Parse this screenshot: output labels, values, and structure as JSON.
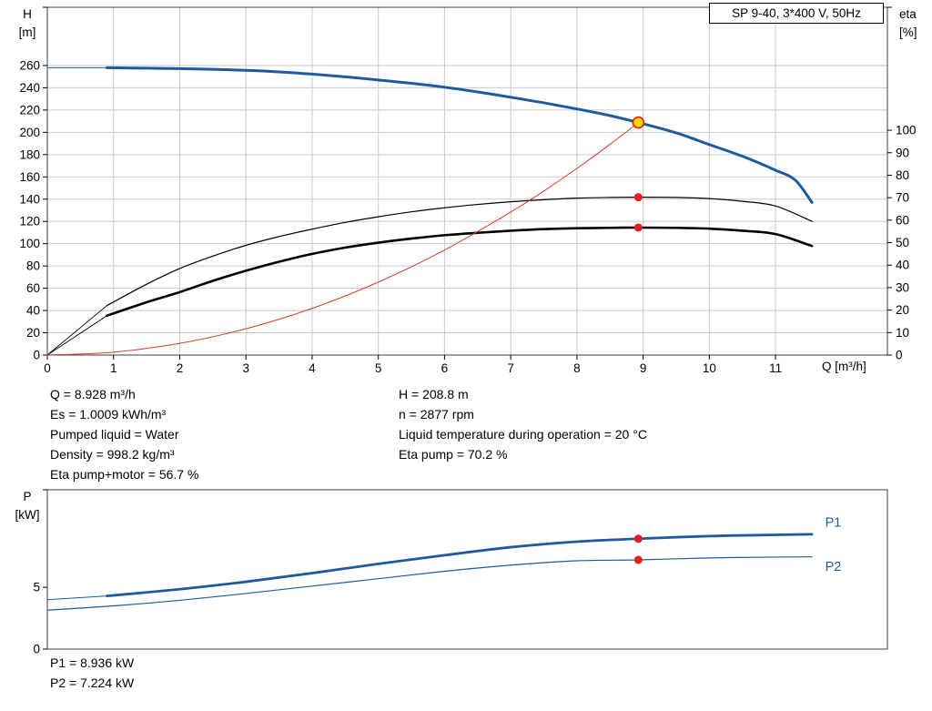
{
  "header": {
    "model": "SP 9-40, 3*400 V, 50Hz"
  },
  "info": {
    "left_lines": [
      "Q = 8.928 m³/h",
      "Es = 1.0009 kWh/m³",
      "Pumped liquid = Water",
      "Density = 998.2 kg/m³",
      "Eta pump+motor = 56.7 %"
    ],
    "right_lines": [
      "H = 208.8 m",
      "n = 2877 rpm",
      "Liquid temperature during operation = 20 °C",
      "Eta pump = 70.2 %"
    ]
  },
  "power_text": [
    "P1 = 8.936 kW",
    "P2 = 7.224 kW"
  ],
  "colors": {
    "curve_blue": "#1e5b9e",
    "curve_black": "#000000",
    "curve_red": "#d93a2b",
    "marker_red": "#e01f1f",
    "marker_yellow": "#ffd400",
    "grid": "#c9c9c9",
    "frame": "#3f3f3f"
  },
  "chart_data": [
    {
      "id": "hq",
      "type": "line",
      "title": "SP 9-40, 3*400 V, 50Hz",
      "x_axis": {
        "label": "Q [m³/h]",
        "min": 0,
        "max": 12.69,
        "gridlines": true,
        "ticks": [
          0,
          1,
          2,
          3,
          4,
          5,
          6,
          7,
          8,
          9,
          10,
          11
        ]
      },
      "y_left": {
        "label": [
          "H",
          "[m]"
        ],
        "min": 0,
        "max": 312.3,
        "gridlines": true,
        "ticks": [
          0,
          20,
          40,
          60,
          80,
          100,
          120,
          140,
          160,
          180,
          200,
          220,
          240,
          260
        ]
      },
      "y_right": {
        "label": [
          "eta",
          "[%]"
        ],
        "min": 0,
        "max": 154.7,
        "ticks": [
          0,
          10,
          20,
          30,
          40,
          50,
          60,
          70,
          80,
          90,
          100
        ]
      },
      "series": [
        {
          "name": "eta-pump-lead",
          "axis": "right",
          "color": "#000000",
          "width": 0.9,
          "points": [
            [
              0,
              0
            ],
            [
              0.9,
              22
            ]
          ]
        },
        {
          "name": "eta-pump-curve",
          "axis": "right",
          "color": "#000000",
          "width": 1.2,
          "points": [
            [
              0.9,
              22
            ],
            [
              1.5,
              31.5
            ],
            [
              2,
              38.5
            ],
            [
              2.5,
              44
            ],
            [
              3,
              48.8
            ],
            [
              3.5,
              52.7
            ],
            [
              4,
              56
            ],
            [
              4.5,
              59
            ],
            [
              5,
              61.5
            ],
            [
              5.5,
              63.7
            ],
            [
              6,
              65.5
            ],
            [
              6.5,
              67
            ],
            [
              7,
              68.2
            ],
            [
              7.5,
              69.1
            ],
            [
              8,
              69.8
            ],
            [
              8.5,
              70.1
            ],
            [
              8.928,
              70.2
            ],
            [
              9.5,
              70.1
            ],
            [
              10,
              69.6
            ],
            [
              10.5,
              68.4
            ],
            [
              11,
              66.3
            ],
            [
              11.55,
              59.5
            ]
          ]
        },
        {
          "name": "eta-pump-motor-lead",
          "axis": "right",
          "color": "#000000",
          "width": 0.9,
          "points": [
            [
              0,
              0
            ],
            [
              0.9,
              17.5
            ]
          ]
        },
        {
          "name": "eta-pump-motor-curve",
          "axis": "right",
          "color": "#000000",
          "width": 2.6,
          "points": [
            [
              0.9,
              17.5
            ],
            [
              1.5,
              23.5
            ],
            [
              2,
              28
            ],
            [
              2.5,
              33
            ],
            [
              3,
              37.5
            ],
            [
              3.5,
              41.5
            ],
            [
              4,
              45
            ],
            [
              4.5,
              47.8
            ],
            [
              5,
              50
            ],
            [
              5.5,
              51.8
            ],
            [
              6,
              53.3
            ],
            [
              6.5,
              54.4
            ],
            [
              7,
              55.3
            ],
            [
              7.5,
              56
            ],
            [
              8,
              56.4
            ],
            [
              8.5,
              56.6
            ],
            [
              8.928,
              56.7
            ],
            [
              9.5,
              56.6
            ],
            [
              10,
              56.2
            ],
            [
              10.5,
              55.3
            ],
            [
              11,
              53.8
            ],
            [
              11.55,
              48.5
            ]
          ]
        },
        {
          "name": "system-curve",
          "axis": "left",
          "color": "#d93a2b",
          "width": 1,
          "points": [
            [
              0,
              0
            ],
            [
              1,
              2.6
            ],
            [
              2,
              10.5
            ],
            [
              3,
              23.6
            ],
            [
              4,
              41.9
            ],
            [
              5,
              65.5
            ],
            [
              6,
              94.3
            ],
            [
              7,
              128.4
            ],
            [
              7.5,
              147.3
            ],
            [
              8,
              167.6
            ],
            [
              8.5,
              189.2
            ],
            [
              8.928,
              208.8
            ]
          ]
        },
        {
          "name": "pump-curve-lead",
          "axis": "left",
          "color": "#1e5b9e",
          "width": 1,
          "points": [
            [
              0,
              258
            ],
            [
              0.9,
              258
            ]
          ]
        },
        {
          "name": "pump-curve",
          "axis": "left",
          "color": "#1e5b9e",
          "width": 3,
          "points": [
            [
              0.9,
              258
            ],
            [
              1.5,
              257.6
            ],
            [
              2,
              257.2
            ],
            [
              2.5,
              256.6
            ],
            [
              3,
              255.7
            ],
            [
              3.5,
              254.3
            ],
            [
              4,
              252.3
            ],
            [
              4.5,
              249.9
            ],
            [
              5,
              247
            ],
            [
              5.5,
              244
            ],
            [
              6,
              240.5
            ],
            [
              6.5,
              236.3
            ],
            [
              7,
              231.5
            ],
            [
              7.5,
              226.5
            ],
            [
              8,
              221
            ],
            [
              8.5,
              215
            ],
            [
              8.928,
              208.8
            ],
            [
              9.5,
              199.5
            ],
            [
              10,
              189
            ],
            [
              10.5,
              178.5
            ],
            [
              11,
              166
            ],
            [
              11.3,
              157
            ],
            [
              11.55,
              137
            ]
          ]
        }
      ],
      "markers": [
        {
          "name": "duty-point",
          "axis": "left",
          "x": 8.928,
          "y": 208.8,
          "style": "duty",
          "fill": "#ffd400",
          "stroke": "#e01f1f",
          "r": 6
        },
        {
          "name": "eta-pump-point",
          "axis": "right",
          "x": 8.928,
          "y": 70.2,
          "style": "dot",
          "fill": "#e01f1f",
          "r": 4.5
        },
        {
          "name": "eta-pump-motor-point",
          "axis": "right",
          "x": 8.928,
          "y": 56.7,
          "style": "dot",
          "fill": "#e01f1f",
          "r": 4.5
        }
      ]
    },
    {
      "id": "power",
      "type": "line",
      "x_axis": {
        "min": 0,
        "max": 12.69,
        "gridlines": false,
        "ticks": []
      },
      "y_left": {
        "label": [
          "P",
          "[kW]"
        ],
        "min": 0,
        "max": 12.9,
        "gridlines": false,
        "ticks": [
          0,
          5
        ]
      },
      "series": [
        {
          "name": "p1-lead",
          "axis": "left",
          "color": "#1e5b9e",
          "width": 1,
          "points": [
            [
              0,
              4.0
            ],
            [
              0.9,
              4.3
            ]
          ]
        },
        {
          "name": "p1-curve",
          "axis": "left",
          "color": "#1e5b9e",
          "width": 2.8,
          "label": "P1",
          "label_at": [
            11.75,
            9.9
          ],
          "points": [
            [
              0.9,
              4.3
            ],
            [
              2,
              4.85
            ],
            [
              3,
              5.45
            ],
            [
              4,
              6.15
            ],
            [
              5,
              6.9
            ],
            [
              6,
              7.6
            ],
            [
              7,
              8.25
            ],
            [
              8,
              8.7
            ],
            [
              8.928,
              8.936
            ],
            [
              10,
              9.15
            ],
            [
              11,
              9.25
            ],
            [
              11.55,
              9.3
            ]
          ]
        },
        {
          "name": "p2-curve",
          "axis": "left",
          "color": "#1e5b9e",
          "width": 1.2,
          "label": "P2",
          "label_at": [
            11.75,
            6.35
          ],
          "points": [
            [
              0,
              3.15
            ],
            [
              1,
              3.5
            ],
            [
              2,
              3.95
            ],
            [
              3,
              4.5
            ],
            [
              4,
              5.1
            ],
            [
              5,
              5.7
            ],
            [
              6,
              6.3
            ],
            [
              7,
              6.8
            ],
            [
              8,
              7.15
            ],
            [
              8.928,
              7.224
            ],
            [
              10,
              7.38
            ],
            [
              11,
              7.45
            ],
            [
              11.55,
              7.47
            ]
          ]
        }
      ],
      "markers": [
        {
          "name": "p1-point",
          "axis": "left",
          "x": 8.928,
          "y": 8.936,
          "style": "dot",
          "fill": "#e01f1f",
          "r": 4.5
        },
        {
          "name": "p2-point",
          "axis": "left",
          "x": 8.928,
          "y": 7.224,
          "style": "dot",
          "fill": "#e01f1f",
          "r": 4.5
        }
      ]
    }
  ]
}
